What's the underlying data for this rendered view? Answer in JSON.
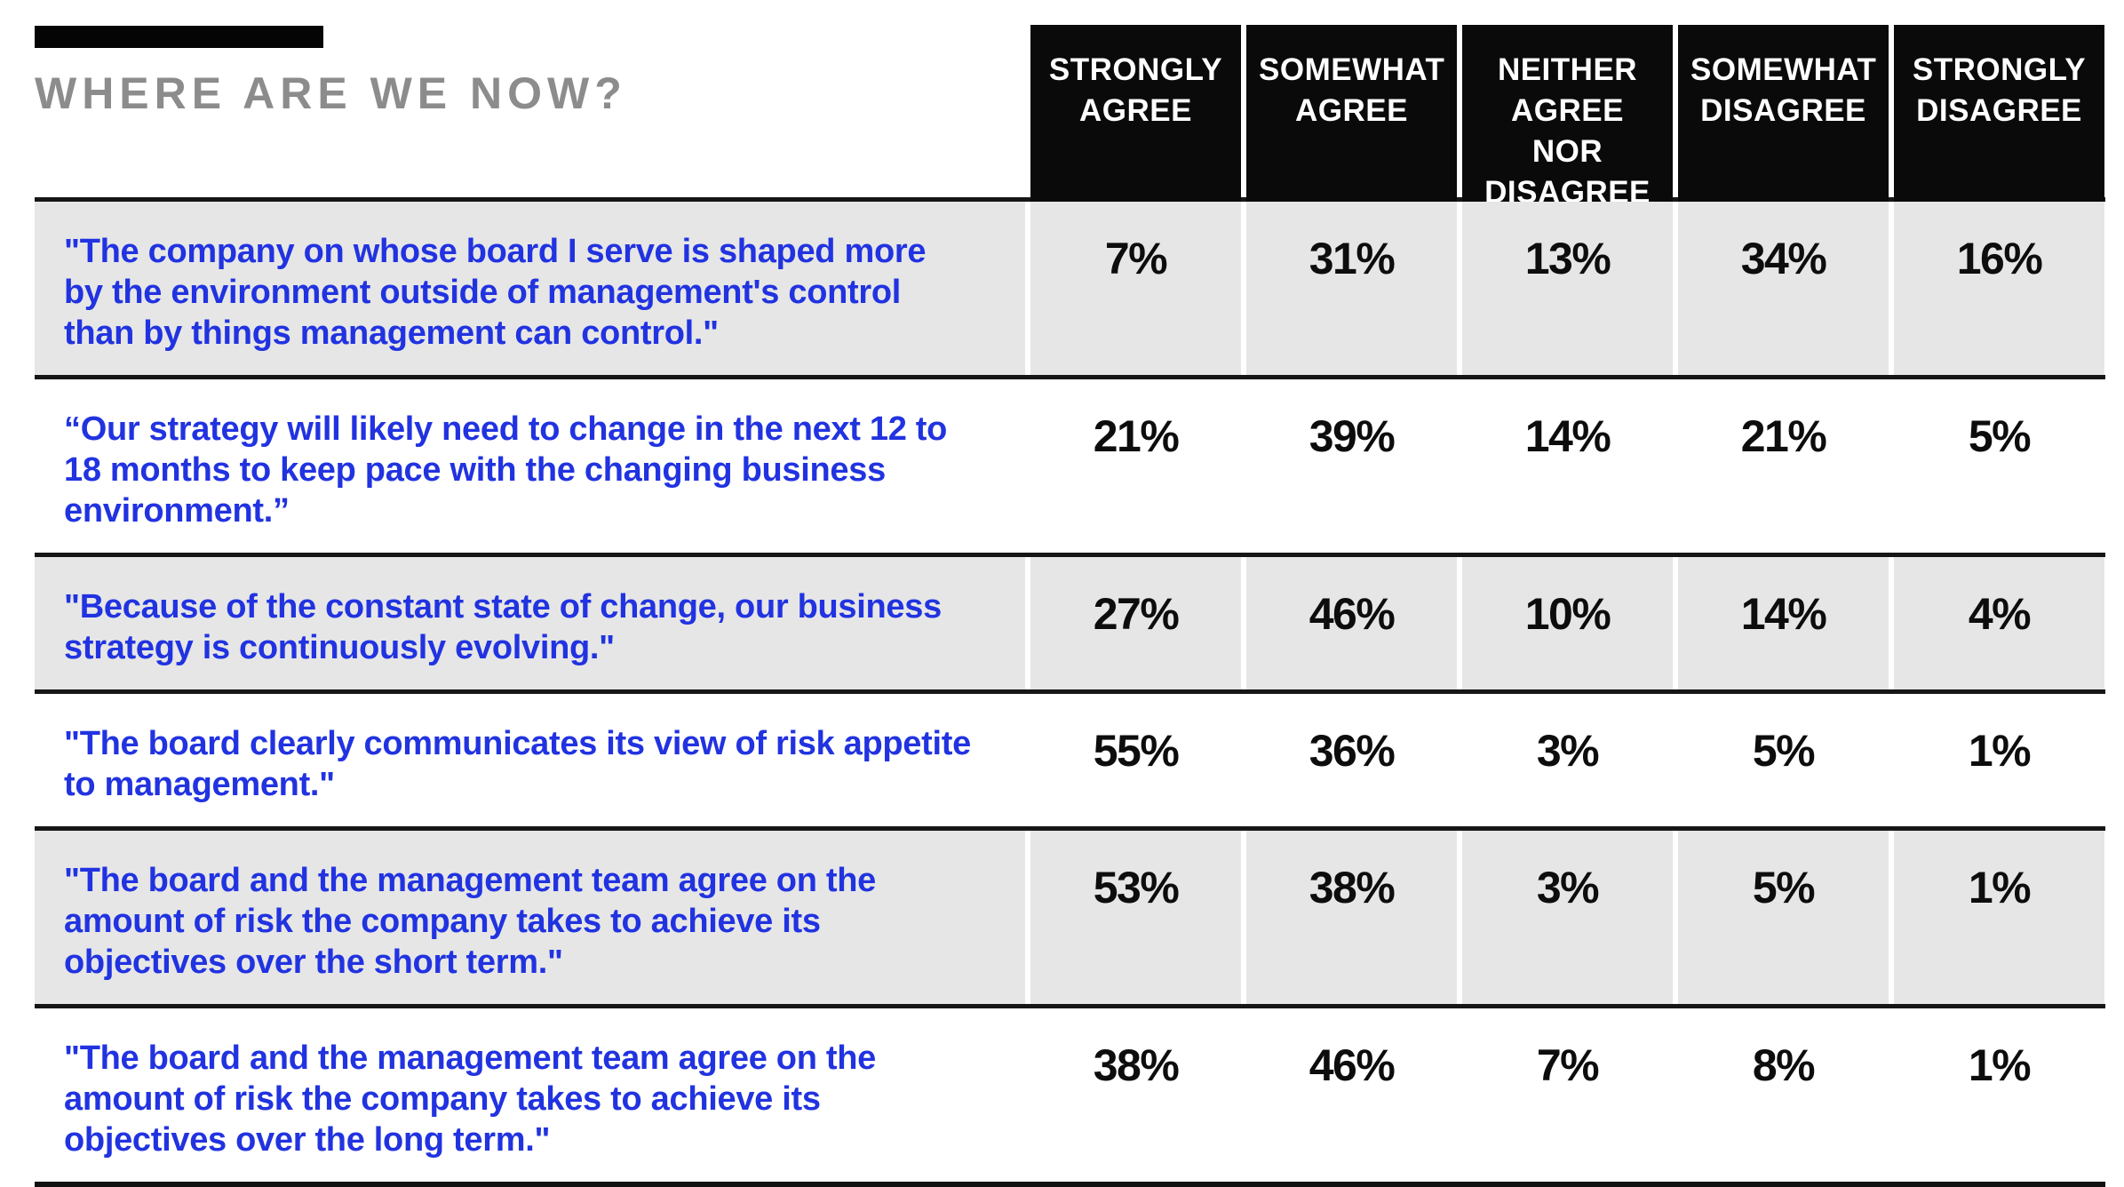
{
  "page": {
    "title": "WHERE ARE WE NOW?"
  },
  "colors": {
    "statement_blue": "#2133e0",
    "shaded_row_gray": "#e6e6e6",
    "header_bg_black": "#0a0a0a",
    "header_text_white": "#ffffff",
    "title_gray": "#8c8c8c",
    "value_black": "#0d0d0d"
  },
  "table": {
    "columns": [
      "STRONGLY AGREE",
      "SOMEWHAT AGREE",
      "NEITHER AGREE NOR DISAGREE",
      "SOMEWHAT DISAGREE",
      "STRONGLY DISAGREE"
    ],
    "rows": [
      {
        "statement": "\"The company on whose board I serve is shaped more by the environment outside of management's control than by things management can control.\"",
        "values": [
          "7%",
          "31%",
          "13%",
          "34%",
          "16%"
        ]
      },
      {
        "statement": "“Our strategy will likely need to change in the next 12 to 18 months to keep pace with the changing business environment.”",
        "values": [
          "21%",
          "39%",
          "14%",
          "21%",
          "5%"
        ]
      },
      {
        "statement": "\"Because of the constant state of change, our business strategy is continuously evolving.\"",
        "values": [
          "27%",
          "46%",
          "10%",
          "14%",
          "4%"
        ]
      },
      {
        "statement": "\"The board clearly communicates its view of risk appetite to management.\"",
        "values": [
          "55%",
          "36%",
          "3%",
          "5%",
          "1%"
        ]
      },
      {
        "statement": "\"The board and the management team agree on the amount of risk the company takes to achieve its objectives over the short term.\"",
        "values": [
          "53%",
          "38%",
          "3%",
          "5%",
          "1%"
        ]
      },
      {
        "statement": "\"The board and the management team agree on the amount of risk the company takes to achieve its objectives over the long term.\"",
        "values": [
          "38%",
          "46%",
          "7%",
          "8%",
          "1%"
        ]
      }
    ]
  },
  "chart_data": {
    "type": "table",
    "title": "WHERE ARE WE NOW?",
    "categories": [
      "Strongly Agree",
      "Somewhat Agree",
      "Neither Agree Nor Disagree",
      "Somewhat Disagree",
      "Strongly Disagree"
    ],
    "unit": "percent",
    "series": [
      {
        "name": "The company on whose board I serve is shaped more by the environment outside of management's control than by things management can control.",
        "values": [
          7,
          31,
          13,
          34,
          16
        ]
      },
      {
        "name": "Our strategy will likely need to change in the next 12 to 18 months to keep pace with the changing business environment.",
        "values": [
          21,
          39,
          14,
          21,
          5
        ]
      },
      {
        "name": "Because of the constant state of change, our business strategy is continuously evolving.",
        "values": [
          27,
          46,
          10,
          14,
          4
        ]
      },
      {
        "name": "The board clearly communicates its view of risk appetite to management.",
        "values": [
          55,
          36,
          3,
          5,
          1
        ]
      },
      {
        "name": "The board and the management team agree on the amount of risk the company takes to achieve its objectives over the short term.",
        "values": [
          53,
          38,
          3,
          5,
          1
        ]
      },
      {
        "name": "The board and the management team agree on the amount of risk the company takes to achieve its objectives over the long term.",
        "values": [
          38,
          46,
          7,
          8,
          1
        ]
      }
    ],
    "layout": {
      "row_shading": "alternating gray/white starting gray",
      "header_style": "black boxes, white uppercase text",
      "statement_color": "blue",
      "grid": "horizontal black rules between rows, double rule at bottom"
    }
  }
}
